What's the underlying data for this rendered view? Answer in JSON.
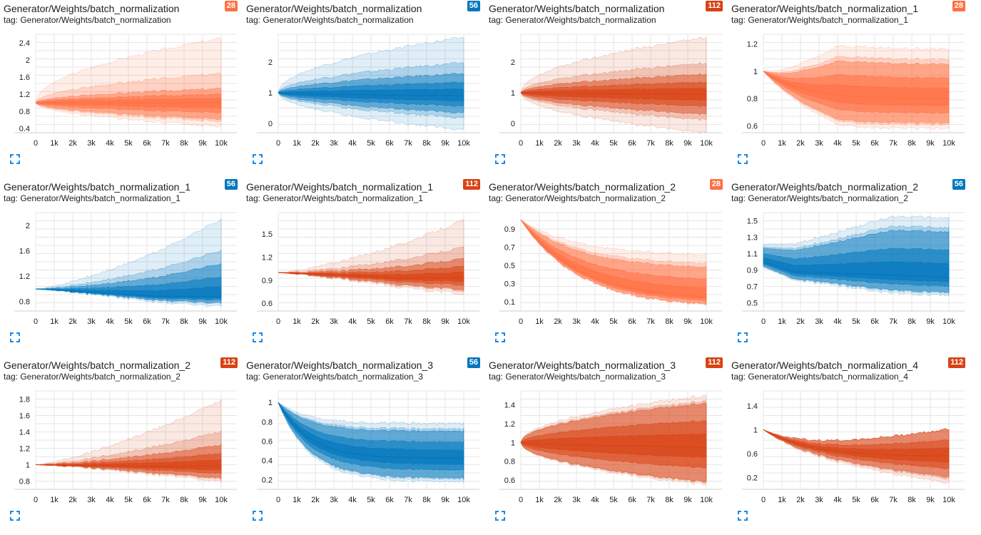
{
  "colors": {
    "orange": "#ff7043",
    "blue": "#0277bd",
    "red": "#d84315"
  },
  "icons": {
    "expand": "expand-icon"
  },
  "cards": [
    {
      "title": "Generator/Weights/batch_normalization",
      "tag": "tag: Generator/Weights/batch_normalization",
      "badge": "28",
      "color": "orange",
      "shape": "fanTight",
      "chart_data": {
        "type": "area",
        "title": "Generator/Weights/batch_normalization",
        "xlabel": "",
        "ylabel": "",
        "xlim": [
          0,
          10000
        ],
        "ylim": [
          0.3,
          2.6
        ],
        "xticks": [
          "0",
          "1k",
          "2k",
          "3k",
          "4k",
          "5k",
          "6k",
          "7k",
          "8k",
          "9k",
          "10k"
        ],
        "yticks": [
          "0.4",
          "0.8",
          "1.2",
          "1.6",
          "2",
          "2.4"
        ],
        "start": 1.0,
        "end": {
          "outer": [
            0.45,
            2.5
          ],
          "band": [
            0.62,
            1.33
          ],
          "median": 1.0
        },
        "grid": true
      }
    },
    {
      "title": "Generator/Weights/batch_normalization",
      "tag": "tag: Generator/Weights/batch_normalization",
      "badge": "56",
      "color": "blue",
      "shape": "fanTight",
      "chart_data": {
        "type": "area",
        "title": "Generator/Weights/batch_normalization",
        "xlabel": "",
        "ylabel": "",
        "xlim": [
          0,
          10000
        ],
        "ylim": [
          -0.3,
          2.9
        ],
        "xticks": [
          "0",
          "1k",
          "2k",
          "3k",
          "4k",
          "5k",
          "6k",
          "7k",
          "8k",
          "9k",
          "10k"
        ],
        "yticks": [
          "0",
          "1",
          "2"
        ],
        "start": 1.0,
        "end": {
          "outer": [
            -0.2,
            2.8
          ],
          "band": [
            0.35,
            1.62
          ],
          "median": 0.9
        },
        "grid": true
      }
    },
    {
      "title": "Generator/Weights/batch_normalization",
      "tag": "tag: Generator/Weights/batch_normalization",
      "badge": "112",
      "color": "red",
      "shape": "fanTight",
      "chart_data": {
        "type": "area",
        "title": "Generator/Weights/batch_normalization",
        "xlabel": "",
        "ylabel": "",
        "xlim": [
          0,
          10000
        ],
        "ylim": [
          -0.3,
          2.9
        ],
        "xticks": [
          "0",
          "1k",
          "2k",
          "3k",
          "4k",
          "5k",
          "6k",
          "7k",
          "8k",
          "9k",
          "10k"
        ],
        "yticks": [
          "0",
          "1",
          "2"
        ],
        "start": 1.0,
        "end": {
          "outer": [
            -0.3,
            2.8
          ],
          "band": [
            0.3,
            1.6
          ],
          "median": 0.95
        },
        "grid": true
      }
    },
    {
      "title": "Generator/Weights/batch_normalization_1",
      "tag": "tag: Generator/Weights/batch_normalization_1",
      "badge": "28",
      "color": "orange",
      "shape": "dip",
      "chart_data": {
        "type": "area",
        "title": "Generator/Weights/batch_normalization_1",
        "xlabel": "",
        "ylabel": "",
        "xlim": [
          0,
          10000
        ],
        "ylim": [
          0.55,
          1.27
        ],
        "xticks": [
          "0",
          "1k",
          "2k",
          "3k",
          "4k",
          "5k",
          "6k",
          "7k",
          "8k",
          "9k",
          "10k"
        ],
        "yticks": [
          "0.6",
          "0.8",
          "1",
          "1.2"
        ],
        "start": 1.0,
        "end": {
          "outer": [
            0.58,
            1.16
          ],
          "band": [
            0.62,
            1.05
          ],
          "median": 0.8
        },
        "grid": true
      }
    },
    {
      "title": "Generator/Weights/batch_normalization_1",
      "tag": "tag: Generator/Weights/batch_normalization_1",
      "badge": "56",
      "color": "blue",
      "shape": "riseLate",
      "chart_data": {
        "type": "area",
        "title": "Generator/Weights/batch_normalization_1",
        "xlabel": "",
        "ylabel": "",
        "xlim": [
          0,
          10000
        ],
        "ylim": [
          0.65,
          2.2
        ],
        "xticks": [
          "0",
          "1k",
          "2k",
          "3k",
          "4k",
          "5k",
          "6k",
          "7k",
          "8k",
          "9k",
          "10k"
        ],
        "yticks": [
          "0.8",
          "1.2",
          "1.6",
          "2"
        ],
        "start": 1.0,
        "end": {
          "outer": [
            0.72,
            2.1
          ],
          "band": [
            0.78,
            1.4
          ],
          "median": 0.88
        },
        "grid": true
      }
    },
    {
      "title": "Generator/Weights/batch_normalization_1",
      "tag": "tag: Generator/Weights/batch_normalization_1",
      "badge": "112",
      "color": "red",
      "shape": "riseLate",
      "chart_data": {
        "type": "area",
        "title": "Generator/Weights/batch_normalization_1",
        "xlabel": "",
        "ylabel": "",
        "xlim": [
          0,
          10000
        ],
        "ylim": [
          0.5,
          1.78
        ],
        "xticks": [
          "0",
          "1k",
          "2k",
          "3k",
          "4k",
          "5k",
          "6k",
          "7k",
          "8k",
          "9k",
          "10k"
        ],
        "yticks": [
          "0.6",
          "0.9",
          "1.2",
          "1.5"
        ],
        "start": 1.0,
        "end": {
          "outer": [
            0.72,
            1.68
          ],
          "band": [
            0.78,
            1.18
          ],
          "median": 0.93
        },
        "grid": true
      }
    },
    {
      "title": "Generator/Weights/batch_normalization_2",
      "tag": "tag: Generator/Weights/batch_normalization_2",
      "badge": "28",
      "color": "orange",
      "shape": "decay",
      "chart_data": {
        "type": "area",
        "title": "Generator/Weights/batch_normalization_2",
        "xlabel": "",
        "ylabel": "",
        "xlim": [
          0,
          10000
        ],
        "ylim": [
          0.0,
          1.08
        ],
        "xticks": [
          "0",
          "1k",
          "2k",
          "3k",
          "4k",
          "5k",
          "6k",
          "7k",
          "8k",
          "9k",
          "10k"
        ],
        "yticks": [
          "0.1",
          "0.3",
          "0.5",
          "0.7",
          "0.9"
        ],
        "start": 1.0,
        "end": {
          "outer": [
            0.03,
            0.6
          ],
          "band": [
            0.04,
            0.46
          ],
          "median": 0.12
        },
        "grid": true
      }
    },
    {
      "title": "Generator/Weights/batch_normalization_2",
      "tag": "tag: Generator/Weights/batch_normalization_2",
      "badge": "56",
      "color": "blue",
      "shape": "dipRise",
      "chart_data": {
        "type": "area",
        "title": "Generator/Weights/batch_normalization_2",
        "xlabel": "",
        "ylabel": "",
        "xlim": [
          0,
          10000
        ],
        "ylim": [
          0.4,
          1.6
        ],
        "xticks": [
          "0",
          "1k",
          "2k",
          "3k",
          "4k",
          "5k",
          "6k",
          "7k",
          "8k",
          "9k",
          "10k"
        ],
        "yticks": [
          "0.5",
          "0.7",
          "0.9",
          "1.1",
          "1.3",
          "1.5"
        ],
        "start": 1.0,
        "end": {
          "outer": [
            0.58,
            1.52
          ],
          "band": [
            0.62,
            1.35
          ],
          "median": 0.8
        },
        "grid": true
      }
    },
    {
      "title": "Generator/Weights/batch_normalization_2",
      "tag": "tag: Generator/Weights/batch_normalization_2",
      "badge": "112",
      "color": "red",
      "shape": "riseLate",
      "chart_data": {
        "type": "area",
        "title": "Generator/Weights/batch_normalization_2",
        "xlabel": "",
        "ylabel": "",
        "xlim": [
          0,
          10000
        ],
        "ylim": [
          0.7,
          1.9
        ],
        "xticks": [
          "0",
          "1k",
          "2k",
          "3k",
          "4k",
          "5k",
          "6k",
          "7k",
          "8k",
          "9k",
          "10k"
        ],
        "yticks": [
          "0.8",
          "1",
          "1.2",
          "1.4",
          "1.6",
          "1.8"
        ],
        "start": 1.0,
        "end": {
          "outer": [
            0.8,
            1.78
          ],
          "band": [
            0.84,
            1.24
          ],
          "median": 0.98
        },
        "grid": true
      }
    },
    {
      "title": "Generator/Weights/batch_normalization_3",
      "tag": "tag: Generator/Weights/batch_normalization_3",
      "badge": "56",
      "color": "blue",
      "shape": "decayPlateau",
      "chart_data": {
        "type": "area",
        "title": "Generator/Weights/batch_normalization_3",
        "xlabel": "",
        "ylabel": "",
        "xlim": [
          0,
          10000
        ],
        "ylim": [
          0.1,
          1.12
        ],
        "xticks": [
          "0",
          "1k",
          "2k",
          "3k",
          "4k",
          "5k",
          "6k",
          "7k",
          "8k",
          "9k",
          "10k"
        ],
        "yticks": [
          "0.2",
          "0.4",
          "0.6",
          "0.8",
          "1"
        ],
        "start": 1.0,
        "end": {
          "outer": [
            0.18,
            0.78
          ],
          "band": [
            0.22,
            0.7
          ],
          "median": 0.42
        },
        "grid": true
      }
    },
    {
      "title": "Generator/Weights/batch_normalization_3",
      "tag": "tag: Generator/Weights/batch_normalization_3",
      "badge": "112",
      "color": "red",
      "shape": "fanTight",
      "chart_data": {
        "type": "area",
        "title": "Generator/Weights/batch_normalization_3",
        "xlabel": "",
        "ylabel": "",
        "xlim": [
          0,
          10000
        ],
        "ylim": [
          0.5,
          1.55
        ],
        "xticks": [
          "0",
          "1k",
          "2k",
          "3k",
          "4k",
          "5k",
          "6k",
          "7k",
          "8k",
          "9k",
          "10k"
        ],
        "yticks": [
          "0.6",
          "0.8",
          "1",
          "1.2",
          "1.4"
        ],
        "start": 1.0,
        "end": {
          "outer": [
            0.55,
            1.5
          ],
          "band": [
            0.58,
            1.42
          ],
          "median": 0.95
        },
        "grid": true
      }
    },
    {
      "title": "Generator/Weights/batch_normalization_4",
      "tag": "tag: Generator/Weights/batch_normalization_4",
      "badge": "112",
      "color": "red",
      "shape": "dipRiseHump",
      "chart_data": {
        "type": "area",
        "title": "Generator/Weights/batch_normalization_4",
        "xlabel": "",
        "ylabel": "",
        "xlim": [
          0,
          10000
        ],
        "ylim": [
          0.0,
          1.65
        ],
        "xticks": [
          "0",
          "1k",
          "2k",
          "3k",
          "4k",
          "5k",
          "6k",
          "7k",
          "8k",
          "9k",
          "10k"
        ],
        "yticks": [
          "0.2",
          "0.6",
          "1",
          "1.4"
        ],
        "start": 1.0,
        "end": {
          "outer": [
            0.1,
            1.0
          ],
          "band": [
            0.2,
            1.0
          ],
          "median": 0.55
        },
        "grid": true
      }
    }
  ]
}
